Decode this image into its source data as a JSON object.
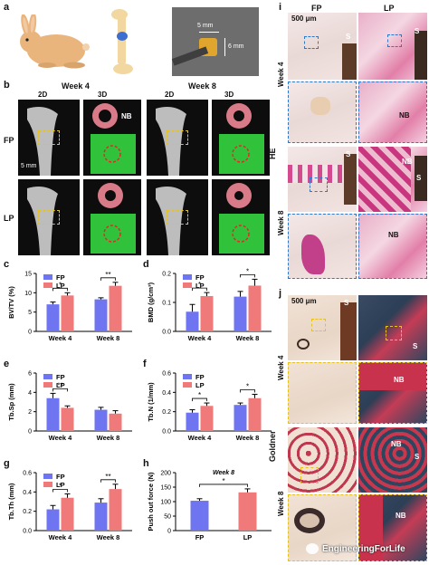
{
  "panels": {
    "a": {
      "label": "a",
      "scale_5mm": "5 mm",
      "scale_6mm": "6 mm"
    },
    "b": {
      "label": "b",
      "week4": "Week 4",
      "week8": "Week 8",
      "d2": "2D",
      "d3": "3D",
      "nb": "NB",
      "fp": "FP",
      "lp": "LP",
      "scale": "5 mm"
    },
    "c": {
      "label": "c"
    },
    "d": {
      "label": "d"
    },
    "e": {
      "label": "e"
    },
    "f": {
      "label": "f"
    },
    "g": {
      "label": "g"
    },
    "h": {
      "label": "h"
    },
    "i": {
      "label": "i",
      "fp": "FP",
      "lp": "LP",
      "scale": "500 μm",
      "stain": "HE",
      "week4": "Week 4",
      "week8": "Week 8",
      "nb": "NB",
      "s": "S"
    },
    "j": {
      "label": "j",
      "scale": "500 μm",
      "stain": "Goldner",
      "week4": "Week 4",
      "week8": "Week 8",
      "nb": "NB",
      "s": "S"
    }
  },
  "watermark": "EngineeringForLife",
  "colors": {
    "fp": "#6f74f0",
    "lp": "#f07a7a",
    "green": "#2fc23a",
    "pink_bone": "#d97a88"
  },
  "chart_data": [
    {
      "id": "c",
      "type": "bar",
      "categories": [
        "Week 4",
        "Week 8"
      ],
      "ylabel": "BV/TV (%)",
      "ylim": [
        0,
        15
      ],
      "yticks": [
        0,
        5,
        10,
        15
      ],
      "series": [
        {
          "name": "FP",
          "values": [
            7.0,
            8.3
          ],
          "errors": [
            0.6,
            0.4
          ]
        },
        {
          "name": "LP",
          "values": [
            9.3,
            11.8
          ],
          "errors": [
            0.7,
            0.9
          ]
        }
      ],
      "sig": [
        "*",
        "**"
      ]
    },
    {
      "id": "d",
      "type": "bar",
      "categories": [
        "Week 4",
        "Week 8"
      ],
      "ylabel": "BMD (g/cm³)",
      "ylim": [
        0,
        0.2
      ],
      "yticks": [
        0.0,
        0.1,
        0.2
      ],
      "series": [
        {
          "name": "FP",
          "values": [
            0.068,
            0.12
          ],
          "errors": [
            0.025,
            0.018
          ]
        },
        {
          "name": "LP",
          "values": [
            0.122,
            0.158
          ],
          "errors": [
            0.012,
            0.022
          ]
        }
      ],
      "sig": [
        "*",
        "*"
      ]
    },
    {
      "id": "e",
      "type": "bar",
      "categories": [
        "Week 4",
        "Week 8"
      ],
      "ylabel": "Tb.Sp (mm)",
      "ylim": [
        0,
        6
      ],
      "yticks": [
        0,
        2,
        4,
        6
      ],
      "series": [
        {
          "name": "FP",
          "values": [
            3.4,
            2.2
          ],
          "errors": [
            0.5,
            0.25
          ]
        },
        {
          "name": "LP",
          "values": [
            2.4,
            1.8
          ],
          "errors": [
            0.2,
            0.3
          ]
        }
      ],
      "sig": [
        "**",
        ""
      ]
    },
    {
      "id": "f",
      "type": "bar",
      "categories": [
        "Week 4",
        "Week 8"
      ],
      "ylabel": "Tb.N (1/mm)",
      "ylim": [
        0,
        0.6
      ],
      "yticks": [
        0.0,
        0.2,
        0.4,
        0.6
      ],
      "series": [
        {
          "name": "FP",
          "values": [
            0.19,
            0.27
          ],
          "errors": [
            0.03,
            0.02
          ]
        },
        {
          "name": "LP",
          "values": [
            0.26,
            0.34
          ],
          "errors": [
            0.03,
            0.04
          ]
        }
      ],
      "sig": [
        "*",
        "*"
      ]
    },
    {
      "id": "g",
      "type": "bar",
      "categories": [
        "Week 4",
        "Week 8"
      ],
      "ylabel": "Tb.Th (mm)",
      "ylim": [
        0,
        0.6
      ],
      "yticks": [
        0.0,
        0.2,
        0.4,
        0.6
      ],
      "series": [
        {
          "name": "FP",
          "values": [
            0.22,
            0.29
          ],
          "errors": [
            0.04,
            0.04
          ]
        },
        {
          "name": "LP",
          "values": [
            0.34,
            0.43
          ],
          "errors": [
            0.04,
            0.05
          ]
        }
      ],
      "sig": [
        "*",
        "**"
      ]
    },
    {
      "id": "h",
      "type": "bar",
      "title": "Week 8",
      "categories": [
        "FP",
        "LP"
      ],
      "ylabel": "Push out force (N)",
      "ylim": [
        0,
        200
      ],
      "yticks": [
        0,
        50,
        100,
        150,
        200
      ],
      "series": [
        {
          "values": [
            103,
            132
          ],
          "errors": [
            7,
            12
          ]
        }
      ],
      "sig": [
        "*"
      ]
    }
  ]
}
